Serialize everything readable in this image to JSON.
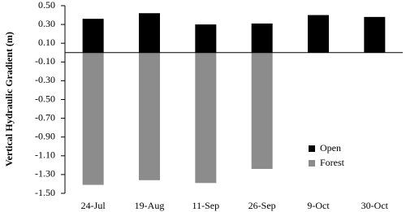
{
  "chart_data": {
    "type": "bar",
    "y_label": "Vertical Hydraulic Gradient (m)",
    "categories": [
      "24-Jul",
      "19-Aug",
      "11-Sep",
      "26-Sep",
      "9-Oct",
      "30-Oct"
    ],
    "series": [
      {
        "name": "Open",
        "color": "#000000",
        "values": [
          0.36,
          0.42,
          0.3,
          0.31,
          0.4,
          0.38
        ]
      },
      {
        "name": "Forest",
        "color": "#8c8c8c",
        "values": [
          -1.41,
          -1.36,
          -1.39,
          -1.24,
          null,
          null
        ]
      }
    ],
    "ylim": [
      -1.5,
      0.5
    ],
    "yticks": [
      {
        "value": 0.5,
        "label": "0.50"
      },
      {
        "value": 0.3,
        "label": "0.30"
      },
      {
        "value": 0.1,
        "label": "0.10"
      },
      {
        "value": -0.1,
        "label": "-0.10"
      },
      {
        "value": -0.3,
        "label": "-0.30"
      },
      {
        "value": -0.5,
        "label": "-0.50"
      },
      {
        "value": -0.7,
        "label": "-0.70"
      },
      {
        "value": -0.9,
        "label": "-0.90"
      },
      {
        "value": -1.1,
        "label": "-1.10"
      },
      {
        "value": -1.3,
        "label": "-1.30"
      },
      {
        "value": -1.5,
        "label": "-1.50"
      }
    ],
    "grid": false,
    "legend": "bottom-right"
  }
}
